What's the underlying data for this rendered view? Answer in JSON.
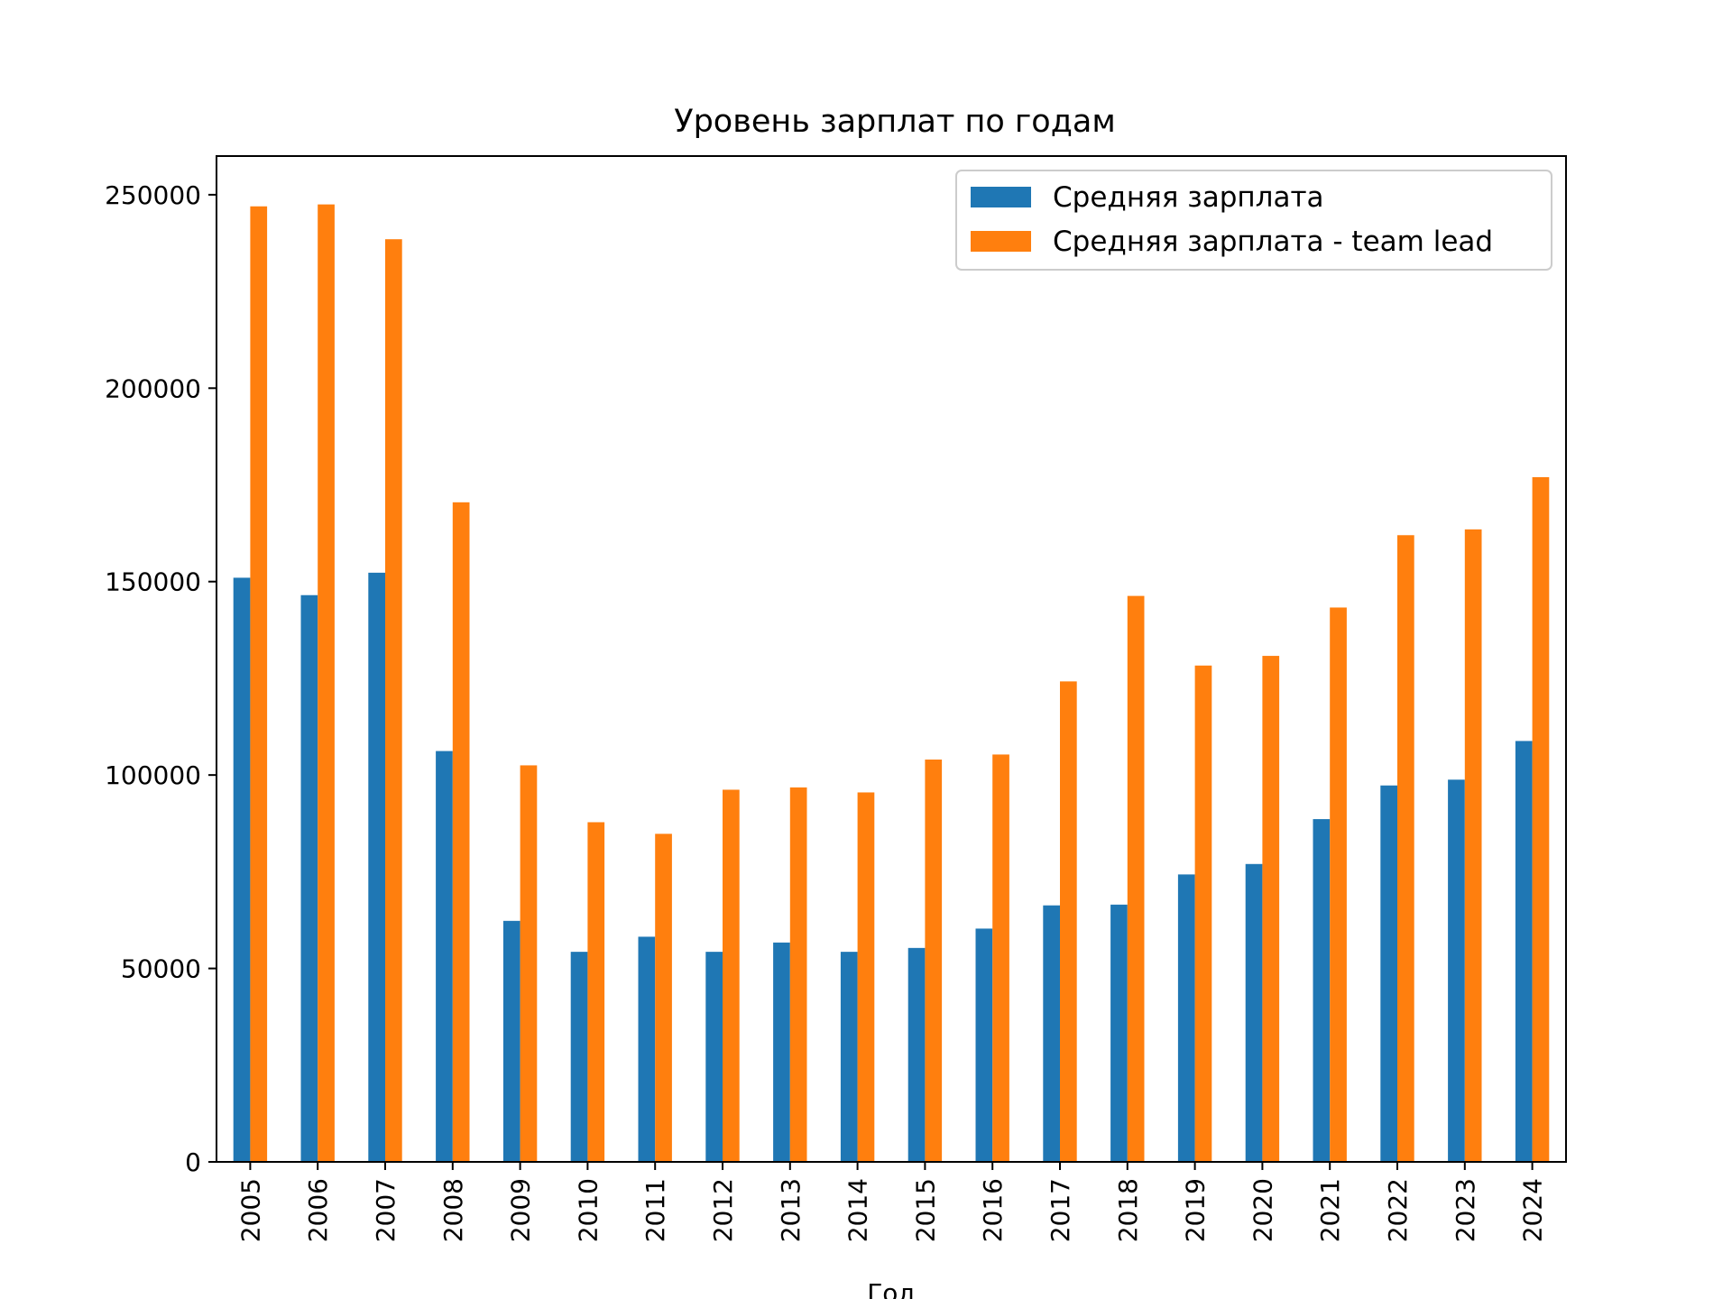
{
  "chart_data": {
    "type": "bar",
    "title": "Уровень зарплат по годам",
    "xlabel": "Год",
    "ylabel": "",
    "ylim": [
      0,
      260000
    ],
    "yticks": [
      0,
      50000,
      100000,
      150000,
      200000,
      250000
    ],
    "categories": [
      "2005",
      "2006",
      "2007",
      "2008",
      "2009",
      "2010",
      "2011",
      "2012",
      "2013",
      "2014",
      "2015",
      "2016",
      "2017",
      "2018",
      "2019",
      "2020",
      "2021",
      "2022",
      "2023",
      "2024"
    ],
    "series": [
      {
        "name": "Средняя зарплата",
        "color": "#1f77b4",
        "values": [
          151000,
          146500,
          152300,
          106200,
          62300,
          54300,
          58200,
          54300,
          56700,
          54300,
          55300,
          60300,
          66300,
          66500,
          74300,
          77000,
          88600,
          97300,
          98800,
          108800
        ]
      },
      {
        "name": "Средняя зарплата - team lead",
        "color": "#ff7f0e",
        "values": [
          247000,
          247500,
          238500,
          170500,
          102500,
          87800,
          84800,
          96200,
          96800,
          95500,
          104000,
          105300,
          124200,
          146300,
          128300,
          130800,
          143300,
          162000,
          163500,
          177000
        ]
      }
    ],
    "legend_position": "upper right",
    "grid": false
  }
}
